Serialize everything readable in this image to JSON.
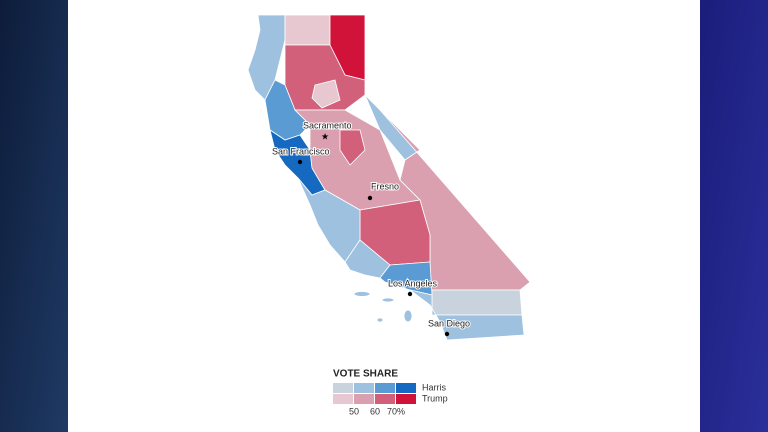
{
  "map": {
    "cities": [
      {
        "label": "Sacramento"
      },
      {
        "label": "San Francisco"
      },
      {
        "label": "Fresno"
      },
      {
        "label": "Los Angeles"
      },
      {
        "label": "San Diego"
      }
    ],
    "legend": {
      "title": "VOTE SHARE",
      "series": [
        {
          "name": "Harris",
          "colors": [
            "#c9d3de",
            "#9ec1df",
            "#5b9bd3",
            "#1569c0"
          ]
        },
        {
          "name": "Trump",
          "colors": [
            "#e8c8d0",
            "#dba0b0",
            "#d2607a",
            "#d1133a"
          ]
        }
      ],
      "ticks": [
        "50",
        "60",
        "70%"
      ]
    }
  }
}
